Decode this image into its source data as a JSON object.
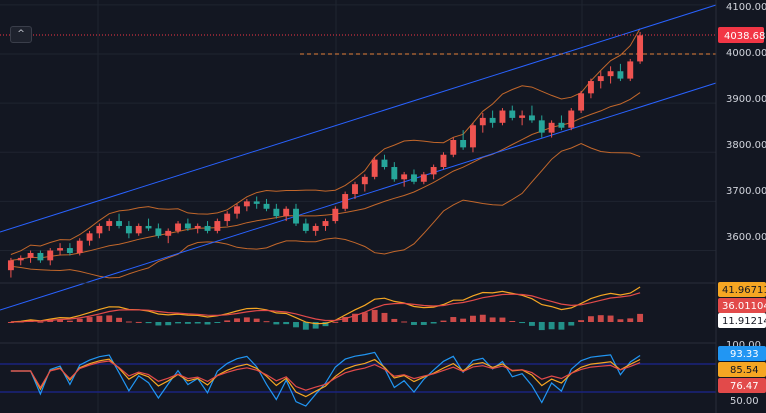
{
  "colors": {
    "background": "#131722",
    "grid": "#1f2430",
    "up": "#ef5350",
    "down": "#26a69a",
    "channel": "#2962ff",
    "bollinger": "#c2672b",
    "price_line": "#f23645",
    "target_line": "#e6813b",
    "macd_line": "#f5a623",
    "signal_line": "#e24a4a",
    "rsi_blue": "#2196f3",
    "rsi_orange": "#f5a623",
    "rsi_red": "#e24a4a",
    "rsi_band": "#1a237e"
  },
  "toolbar": {
    "collapse_icon": "chevron-up-icon",
    "collapse_glyph": "^"
  },
  "price_axis": {
    "ticks": [
      "4100.00",
      "4000.00",
      "3900.00",
      "3800.00",
      "3700.00",
      "3600.00"
    ],
    "last_price": "4038.68",
    "target_level": 4000
  },
  "macd_axis": {
    "macd": "41.96711",
    "signal": "36.01104",
    "histogram": "11.91214"
  },
  "rsi_axis": {
    "partial_tick": "100.00",
    "fast": "93.33",
    "mid": "85.54",
    "slow": "76.47",
    "lower_tick": "50.00"
  },
  "chart_data": {
    "type": "candlestick",
    "y_range": [
      3540,
      4110
    ],
    "candles": [
      [
        3560,
        3585,
        3545,
        3580
      ],
      [
        3580,
        3590,
        3570,
        3585
      ],
      [
        3585,
        3600,
        3575,
        3595
      ],
      [
        3595,
        3600,
        3575,
        3580
      ],
      [
        3580,
        3605,
        3570,
        3600
      ],
      [
        3600,
        3615,
        3590,
        3605
      ],
      [
        3605,
        3615,
        3590,
        3595
      ],
      [
        3595,
        3625,
        3590,
        3620
      ],
      [
        3620,
        3640,
        3610,
        3635
      ],
      [
        3635,
        3655,
        3625,
        3650
      ],
      [
        3650,
        3665,
        3640,
        3660
      ],
      [
        3660,
        3675,
        3645,
        3650
      ],
      [
        3650,
        3660,
        3625,
        3635
      ],
      [
        3635,
        3655,
        3630,
        3650
      ],
      [
        3650,
        3665,
        3640,
        3645
      ],
      [
        3645,
        3655,
        3625,
        3630
      ],
      [
        3630,
        3645,
        3615,
        3640
      ],
      [
        3640,
        3660,
        3635,
        3655
      ],
      [
        3655,
        3665,
        3640,
        3645
      ],
      [
        3645,
        3655,
        3635,
        3650
      ],
      [
        3650,
        3660,
        3635,
        3640
      ],
      [
        3640,
        3665,
        3635,
        3660
      ],
      [
        3660,
        3680,
        3650,
        3675
      ],
      [
        3675,
        3695,
        3665,
        3690
      ],
      [
        3690,
        3705,
        3680,
        3700
      ],
      [
        3700,
        3710,
        3685,
        3695
      ],
      [
        3695,
        3705,
        3680,
        3685
      ],
      [
        3685,
        3695,
        3665,
        3670
      ],
      [
        3670,
        3690,
        3660,
        3685
      ],
      [
        3685,
        3695,
        3650,
        3655
      ],
      [
        3655,
        3665,
        3635,
        3640
      ],
      [
        3640,
        3655,
        3630,
        3650
      ],
      [
        3650,
        3665,
        3640,
        3660
      ],
      [
        3660,
        3690,
        3655,
        3685
      ],
      [
        3685,
        3720,
        3680,
        3715
      ],
      [
        3715,
        3740,
        3705,
        3735
      ],
      [
        3735,
        3755,
        3720,
        3750
      ],
      [
        3750,
        3790,
        3745,
        3785
      ],
      [
        3785,
        3795,
        3765,
        3770
      ],
      [
        3770,
        3780,
        3740,
        3745
      ],
      [
        3745,
        3760,
        3730,
        3755
      ],
      [
        3755,
        3765,
        3735,
        3740
      ],
      [
        3740,
        3760,
        3735,
        3755
      ],
      [
        3755,
        3775,
        3745,
        3770
      ],
      [
        3770,
        3800,
        3765,
        3795
      ],
      [
        3795,
        3830,
        3790,
        3825
      ],
      [
        3825,
        3845,
        3805,
        3810
      ],
      [
        3810,
        3860,
        3800,
        3855
      ],
      [
        3855,
        3880,
        3840,
        3870
      ],
      [
        3870,
        3885,
        3850,
        3860
      ],
      [
        3860,
        3890,
        3855,
        3885
      ],
      [
        3885,
        3895,
        3865,
        3870
      ],
      [
        3870,
        3885,
        3855,
        3875
      ],
      [
        3875,
        3895,
        3860,
        3865
      ],
      [
        3865,
        3875,
        3830,
        3840
      ],
      [
        3840,
        3865,
        3830,
        3860
      ],
      [
        3860,
        3875,
        3845,
        3850
      ],
      [
        3850,
        3890,
        3845,
        3885
      ],
      [
        3885,
        3925,
        3880,
        3920
      ],
      [
        3920,
        3950,
        3910,
        3945
      ],
      [
        3945,
        3965,
        3930,
        3955
      ],
      [
        3955,
        3975,
        3940,
        3965
      ],
      [
        3965,
        3980,
        3945,
        3950
      ],
      [
        3950,
        3990,
        3945,
        3985
      ],
      [
        3985,
        4045,
        3980,
        4038
      ]
    ]
  }
}
